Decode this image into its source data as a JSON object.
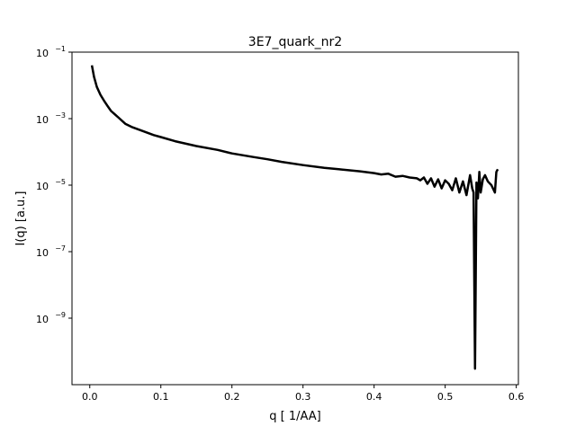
{
  "chart_data": {
    "type": "line",
    "title": "3E7_quark_nr2",
    "xlabel": "q [ 1/AA]",
    "ylabel": "I(q) [a.u.]",
    "xlim": [
      -0.025,
      0.603
    ],
    "ylim": [
      1e-11,
      0.1
    ],
    "yscale": "log",
    "grid": false,
    "xticks": [
      0.0,
      0.1,
      0.2,
      0.3,
      0.4,
      0.5,
      0.6
    ],
    "xtick_labels": [
      "0.0",
      "0.1",
      "0.2",
      "0.3",
      "0.4",
      "0.5",
      "0.6"
    ],
    "yticks": [
      0.1,
      0.001,
      1e-05,
      1e-07,
      1e-09
    ],
    "ytick_labels": [
      [
        "10",
        "−1"
      ],
      [
        "10",
        "−3"
      ],
      [
        "10",
        "−5"
      ],
      [
        "10",
        "−7"
      ],
      [
        "10",
        "−9"
      ]
    ],
    "series": [
      {
        "color": "#000000",
        "x": [
          0.003,
          0.006,
          0.01,
          0.015,
          0.02,
          0.025,
          0.03,
          0.04,
          0.05,
          0.06,
          0.075,
          0.09,
          0.1,
          0.12,
          0.15,
          0.18,
          0.2,
          0.23,
          0.25,
          0.27,
          0.3,
          0.33,
          0.35,
          0.38,
          0.4,
          0.41,
          0.42,
          0.43,
          0.44,
          0.45,
          0.46,
          0.465,
          0.47,
          0.475,
          0.48,
          0.485,
          0.49,
          0.495,
          0.5,
          0.505,
          0.51,
          0.515,
          0.52,
          0.525,
          0.53,
          0.535,
          0.538,
          0.54,
          0.542,
          0.544,
          0.546,
          0.548,
          0.55,
          0.553,
          0.556,
          0.56,
          0.565,
          0.57,
          0.572,
          0.574
        ],
        "y": [
          0.04,
          0.018,
          0.009,
          0.0052,
          0.0035,
          0.0024,
          0.0017,
          0.0011,
          0.0007,
          0.00055,
          0.00042,
          0.00032,
          0.00028,
          0.00021,
          0.00015,
          0.000115,
          9e-05,
          7e-05,
          6e-05,
          5e-05,
          4e-05,
          3.3e-05,
          3e-05,
          2.6e-05,
          2.3e-05,
          2.1e-05,
          2.2e-05,
          1.8e-05,
          1.9e-05,
          1.7e-05,
          1.6e-05,
          1.4e-05,
          1.7e-05,
          1.1e-05,
          1.6e-05,
          9e-06,
          1.5e-05,
          8e-06,
          1.4e-05,
          1.1e-05,
          7e-06,
          1.6e-05,
          6e-06,
          1.3e-05,
          5e-06,
          2e-05,
          8e-06,
          6e-06,
          3e-11,
          1.2e-05,
          4e-06,
          2.5e-05,
          6e-06,
          1.5e-05,
          2e-05,
          1.3e-05,
          1e-05,
          6e-06,
          2.5e-05,
          3e-05
        ]
      }
    ]
  }
}
